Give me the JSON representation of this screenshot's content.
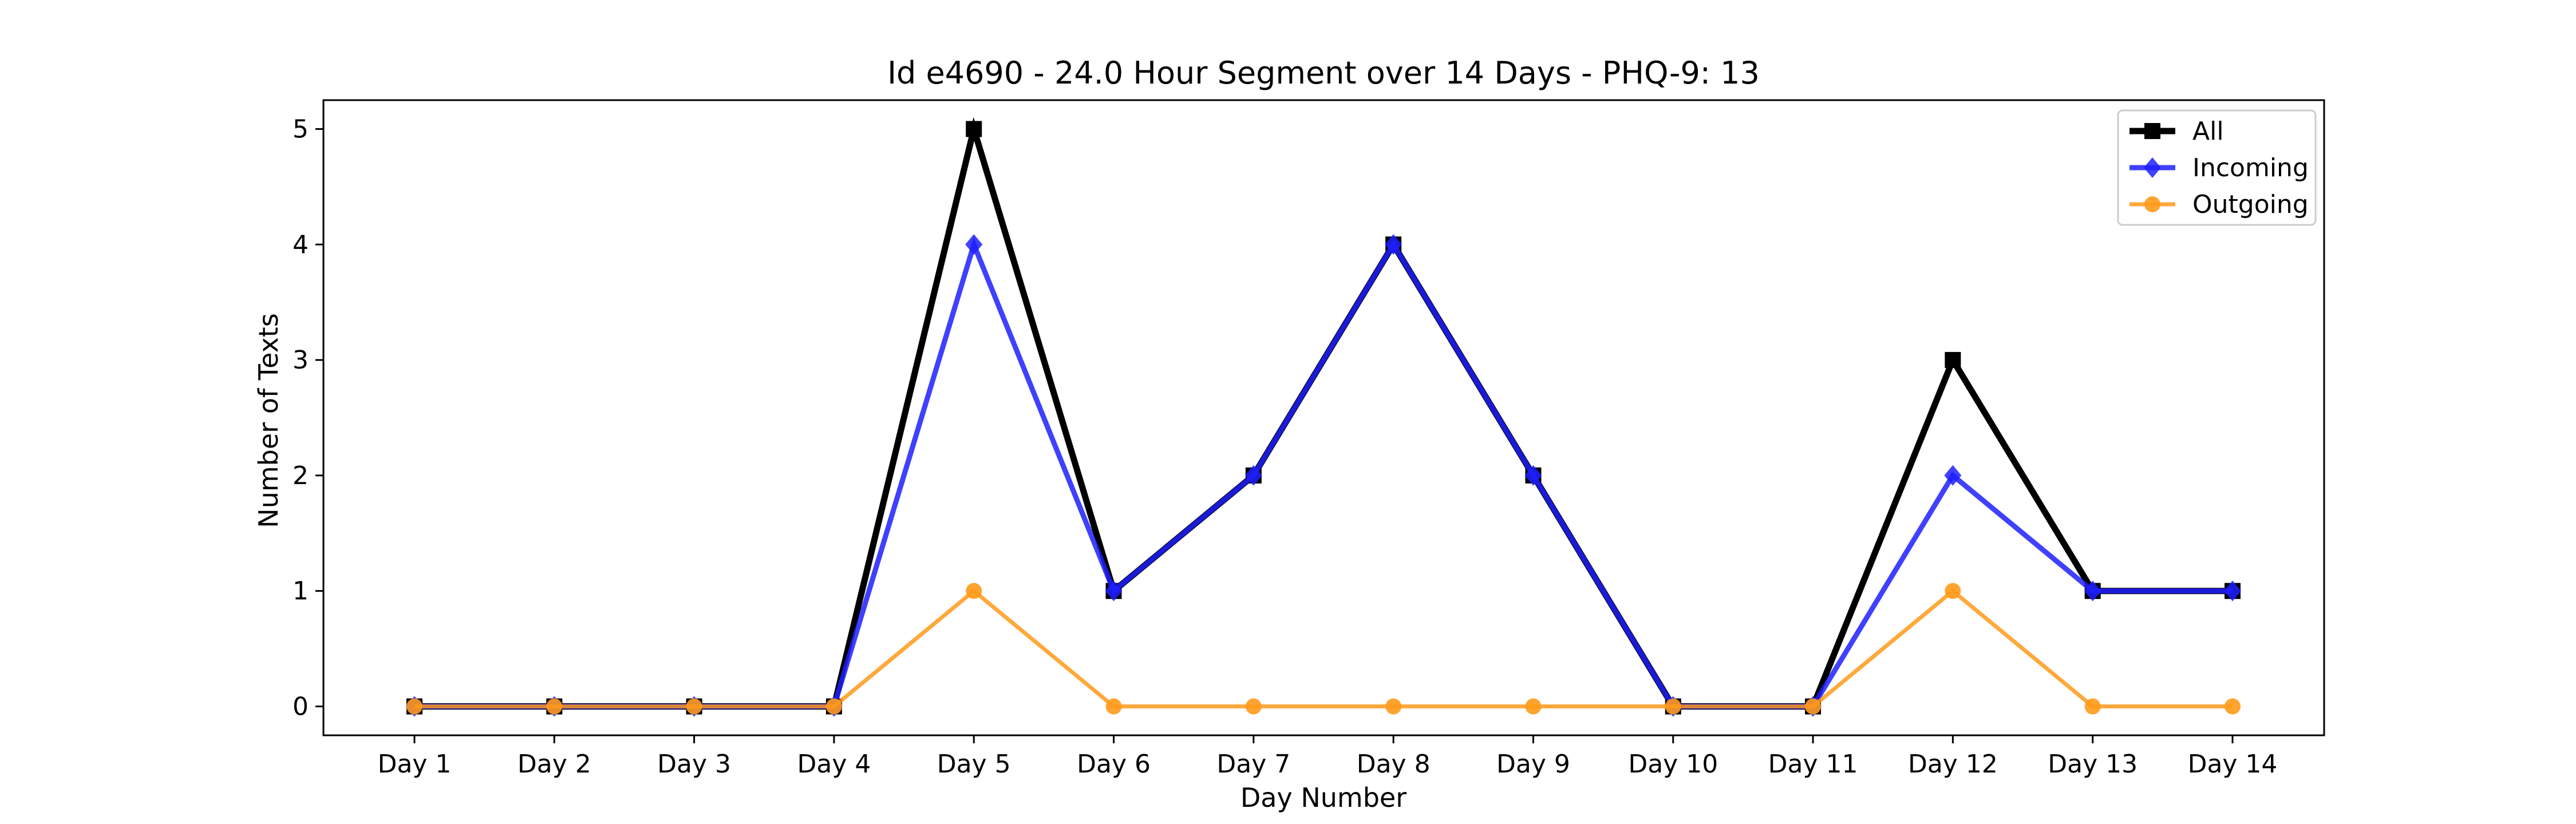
{
  "chart_data": {
    "type": "line",
    "title": "Id e4690 - 24.0 Hour Segment over 14 Days - PHQ-9: 13",
    "xlabel": "Day Number",
    "ylabel": "Number of Texts",
    "categories": [
      "Day 1",
      "Day 2",
      "Day 3",
      "Day 4",
      "Day 5",
      "Day 6",
      "Day 7",
      "Day 8",
      "Day 9",
      "Day 10",
      "Day 11",
      "Day 12",
      "Day 13",
      "Day 14"
    ],
    "ylim": [
      -0.25,
      5.25
    ],
    "yticks": [
      0,
      1,
      2,
      3,
      4,
      5
    ],
    "grid": false,
    "legend_position": "top-right",
    "series": [
      {
        "name": "All",
        "color": "#000000",
        "marker": "square",
        "values": [
          0,
          0,
          0,
          0,
          5,
          1,
          2,
          4,
          2,
          0,
          0,
          3,
          1,
          1
        ]
      },
      {
        "name": "Incoming",
        "color": "#1f1fff",
        "marker": "diamond",
        "values": [
          0,
          0,
          0,
          0,
          4,
          1,
          2,
          4,
          2,
          0,
          0,
          2,
          1,
          1
        ]
      },
      {
        "name": "Outgoing",
        "color": "#ff9a1a",
        "marker": "circle",
        "values": [
          0,
          0,
          0,
          0,
          1,
          0,
          0,
          0,
          0,
          0,
          0,
          1,
          0,
          0
        ]
      }
    ]
  }
}
